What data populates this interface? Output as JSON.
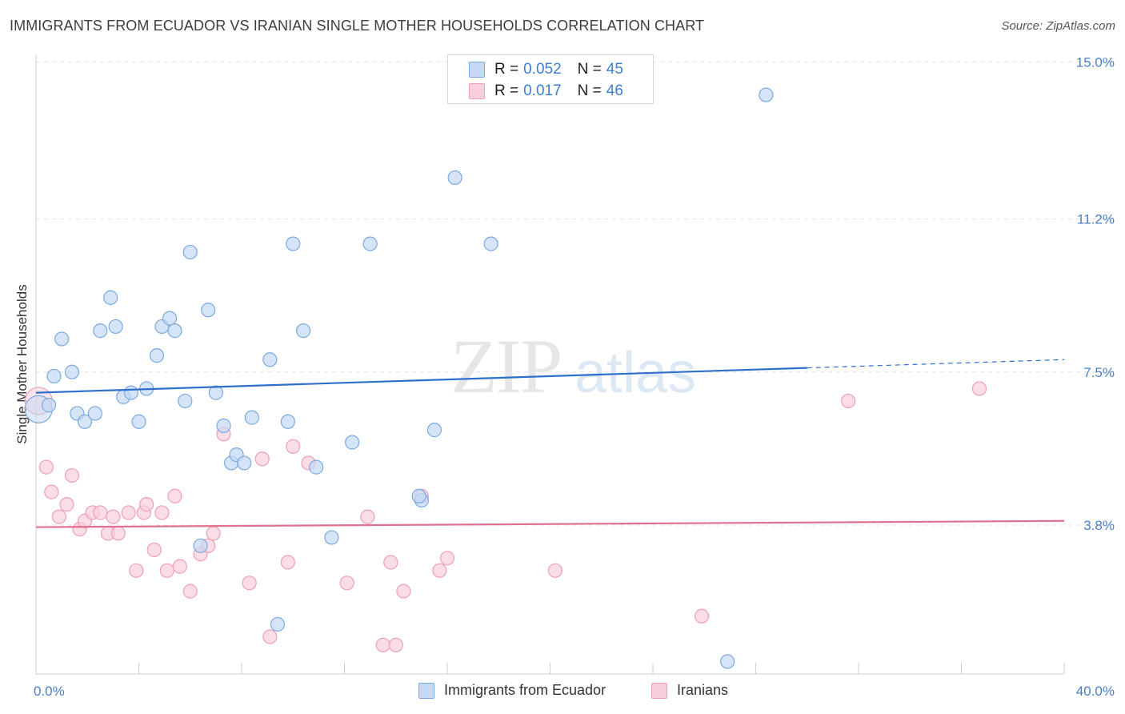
{
  "header": {
    "title": "IMMIGRANTS FROM ECUADOR VS IRANIAN SINGLE MOTHER HOUSEHOLDS CORRELATION CHART",
    "source": "Source: ZipAtlas.com"
  },
  "watermark": {
    "zip": "ZIP",
    "atlas": "atlas"
  },
  "colors": {
    "blue_fill": "#c5d9f4",
    "blue_stroke": "#7aaae0",
    "blue_line": "#2e6fcb",
    "pink_fill": "#f9cfdc",
    "pink_stroke": "#ee9fb8",
    "pink_line": "#e0708f",
    "tick_text": "#4a7fc8",
    "grid": "#e2e2e2"
  },
  "legend": {
    "rows": [
      {
        "r_label": "R =",
        "r_value": "0.052",
        "n_label": "N =",
        "n_value": "45",
        "series": "blue"
      },
      {
        "r_label": "R =",
        "r_value": "0.017",
        "n_label": "N =",
        "n_value": "46",
        "series": "pink"
      }
    ]
  },
  "chart_data": {
    "type": "scatter",
    "title": "IMMIGRANTS FROM ECUADOR VS IRANIAN SINGLE MOTHER HOUSEHOLDS CORRELATION CHART",
    "xlabel": "",
    "ylabel": "Single Mother Households",
    "xlim": [
      0,
      40
    ],
    "ylim": [
      0,
      15.5
    ],
    "x_tick_labels": [
      "0.0%",
      "40.0%"
    ],
    "y_ticks": [
      3.8,
      7.5,
      11.2,
      15.0
    ],
    "y_tick_labels": [
      "3.8%",
      "7.5%",
      "11.2%",
      "15.0%"
    ],
    "legend_position": "top-center",
    "series": [
      {
        "name": "Immigrants from Ecuador",
        "color": "blue",
        "trend": {
          "x": [
            0,
            30,
            40
          ],
          "y": [
            7.0,
            7.6,
            7.8
          ],
          "solid_to": 30
        },
        "points": [
          {
            "x": 0.1,
            "y": 6.6,
            "s": "large"
          },
          {
            "x": 0.5,
            "y": 6.7
          },
          {
            "x": 0.7,
            "y": 7.4
          },
          {
            "x": 1.0,
            "y": 8.3
          },
          {
            "x": 1.4,
            "y": 7.5
          },
          {
            "x": 1.6,
            "y": 6.5
          },
          {
            "x": 1.9,
            "y": 6.3
          },
          {
            "x": 2.3,
            "y": 6.5
          },
          {
            "x": 2.5,
            "y": 8.5
          },
          {
            "x": 2.9,
            "y": 9.3
          },
          {
            "x": 3.1,
            "y": 8.6
          },
          {
            "x": 3.4,
            "y": 6.9
          },
          {
            "x": 3.7,
            "y": 7.0
          },
          {
            "x": 4.0,
            "y": 6.3
          },
          {
            "x": 4.3,
            "y": 7.1
          },
          {
            "x": 4.7,
            "y": 7.9
          },
          {
            "x": 4.9,
            "y": 8.6
          },
          {
            "x": 5.2,
            "y": 8.8
          },
          {
            "x": 5.4,
            "y": 8.5
          },
          {
            "x": 5.8,
            "y": 6.8
          },
          {
            "x": 6.0,
            "y": 10.4
          },
          {
            "x": 6.4,
            "y": 3.3
          },
          {
            "x": 6.7,
            "y": 9.0
          },
          {
            "x": 7.0,
            "y": 7.0
          },
          {
            "x": 7.3,
            "y": 6.2
          },
          {
            "x": 7.6,
            "y": 5.3
          },
          {
            "x": 7.8,
            "y": 5.5
          },
          {
            "x": 8.1,
            "y": 5.3
          },
          {
            "x": 8.4,
            "y": 6.4
          },
          {
            "x": 9.1,
            "y": 7.8
          },
          {
            "x": 9.4,
            "y": 1.4
          },
          {
            "x": 9.8,
            "y": 6.3
          },
          {
            "x": 10.0,
            "y": 10.6
          },
          {
            "x": 10.4,
            "y": 8.5
          },
          {
            "x": 10.9,
            "y": 5.2
          },
          {
            "x": 11.5,
            "y": 3.5
          },
          {
            "x": 12.3,
            "y": 5.8
          },
          {
            "x": 13.0,
            "y": 10.6
          },
          {
            "x": 15.0,
            "y": 4.4
          },
          {
            "x": 15.5,
            "y": 6.1
          },
          {
            "x": 16.3,
            "y": 12.2
          },
          {
            "x": 17.7,
            "y": 10.6
          },
          {
            "x": 26.9,
            "y": 0.5
          },
          {
            "x": 28.4,
            "y": 14.2
          },
          {
            "x": 14.9,
            "y": 4.5
          }
        ]
      },
      {
        "name": "Iranians",
        "color": "pink",
        "trend": {
          "x": [
            0,
            40
          ],
          "y": [
            3.75,
            3.9
          ]
        },
        "points": [
          {
            "x": 0.1,
            "y": 6.8,
            "s": "large"
          },
          {
            "x": 0.4,
            "y": 5.2
          },
          {
            "x": 0.6,
            "y": 4.6
          },
          {
            "x": 0.9,
            "y": 4.0
          },
          {
            "x": 1.2,
            "y": 4.3
          },
          {
            "x": 1.4,
            "y": 5.0
          },
          {
            "x": 1.7,
            "y": 3.7
          },
          {
            "x": 1.9,
            "y": 3.9
          },
          {
            "x": 2.2,
            "y": 4.1
          },
          {
            "x": 2.5,
            "y": 4.1
          },
          {
            "x": 2.8,
            "y": 3.6
          },
          {
            "x": 3.0,
            "y": 4.0
          },
          {
            "x": 3.2,
            "y": 3.6
          },
          {
            "x": 3.6,
            "y": 4.1
          },
          {
            "x": 3.9,
            "y": 2.7
          },
          {
            "x": 4.2,
            "y": 4.1
          },
          {
            "x": 4.3,
            "y": 4.3
          },
          {
            "x": 4.6,
            "y": 3.2
          },
          {
            "x": 4.9,
            "y": 4.1
          },
          {
            "x": 5.1,
            "y": 2.7
          },
          {
            "x": 5.4,
            "y": 4.5
          },
          {
            "x": 5.6,
            "y": 2.8
          },
          {
            "x": 6.0,
            "y": 2.2
          },
          {
            "x": 6.4,
            "y": 3.1
          },
          {
            "x": 6.7,
            "y": 3.3
          },
          {
            "x": 6.9,
            "y": 3.6
          },
          {
            "x": 7.3,
            "y": 6.0
          },
          {
            "x": 8.3,
            "y": 2.4
          },
          {
            "x": 8.8,
            "y": 5.4
          },
          {
            "x": 9.1,
            "y": 1.1
          },
          {
            "x": 9.8,
            "y": 2.9
          },
          {
            "x": 10.0,
            "y": 5.7
          },
          {
            "x": 10.6,
            "y": 5.3
          },
          {
            "x": 12.1,
            "y": 2.4
          },
          {
            "x": 12.9,
            "y": 4.0
          },
          {
            "x": 13.5,
            "y": 0.9
          },
          {
            "x": 13.8,
            "y": 2.9
          },
          {
            "x": 14.0,
            "y": 0.9
          },
          {
            "x": 14.3,
            "y": 2.2
          },
          {
            "x": 15.0,
            "y": 4.5
          },
          {
            "x": 15.7,
            "y": 2.7
          },
          {
            "x": 16.0,
            "y": 3.0
          },
          {
            "x": 20.2,
            "y": 2.7
          },
          {
            "x": 25.9,
            "y": 1.6
          },
          {
            "x": 31.6,
            "y": 6.8
          },
          {
            "x": 36.7,
            "y": 7.1
          }
        ]
      }
    ]
  }
}
